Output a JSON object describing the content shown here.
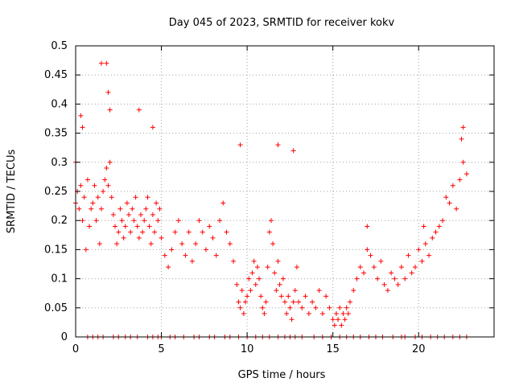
{
  "chart_data": {
    "type": "scatter",
    "title": "Day 045 of 2023, SRMTID for receiver kokv",
    "xlabel": "GPS time / hours",
    "ylabel": "SRMTID / TECUs",
    "xlim": [
      0,
      24.4
    ],
    "ylim": [
      0,
      0.5
    ],
    "x_ticks": [
      0,
      5,
      10,
      15,
      20
    ],
    "x_tick_labels": [
      "0",
      "5",
      "10",
      "15",
      "20"
    ],
    "y_ticks": [
      0,
      0.05,
      0.1,
      0.15,
      0.2,
      0.25,
      0.3,
      0.35,
      0.4,
      0.45,
      0.5
    ],
    "y_tick_labels": [
      "0",
      "0.05",
      "0.1",
      "0.15",
      "0.2",
      "0.25",
      "0.3",
      "0.35",
      "0.4",
      "0.45",
      "0.5"
    ],
    "grid": true,
    "marker": "+",
    "color": "#ff0000",
    "series": [
      {
        "name": "SRMTID",
        "x": [
          0.0,
          0.1,
          0.2,
          0.3,
          0.4,
          0.5,
          0.6,
          0.7,
          0.8,
          0.9,
          1.0,
          1.1,
          1.2,
          1.3,
          1.4,
          1.5,
          1.6,
          1.7,
          1.8,
          1.9,
          2.0,
          2.1,
          2.2,
          2.3,
          2.4,
          2.5,
          2.6,
          2.7,
          2.8,
          2.9,
          3.0,
          3.1,
          3.2,
          3.3,
          3.4,
          3.5,
          3.6,
          3.7,
          3.8,
          3.9,
          4.0,
          4.1,
          4.2,
          4.3,
          4.4,
          4.5,
          4.6,
          4.7,
          4.8,
          4.9,
          5.0,
          5.2,
          5.4,
          5.6,
          5.8,
          6.0,
          6.2,
          6.4,
          6.6,
          6.8,
          7.0,
          7.2,
          7.4,
          7.6,
          7.8,
          8.0,
          8.2,
          8.4,
          8.6,
          8.8,
          9.0,
          9.2,
          9.4,
          9.5,
          9.6,
          9.7,
          9.8,
          9.9,
          10.0,
          10.1,
          10.2,
          10.3,
          10.4,
          10.5,
          10.6,
          10.7,
          10.8,
          10.9,
          11.0,
          11.1,
          11.2,
          11.3,
          11.4,
          11.5,
          11.6,
          11.7,
          11.8,
          11.9,
          12.0,
          12.1,
          12.2,
          12.3,
          12.4,
          12.5,
          12.6,
          12.7,
          12.8,
          12.9,
          13.0,
          13.2,
          13.4,
          13.6,
          13.8,
          14.0,
          14.2,
          14.4,
          14.6,
          14.8,
          15.0,
          15.1,
          15.2,
          15.3,
          15.4,
          15.5,
          15.6,
          15.7,
          15.8,
          15.9,
          16.0,
          16.2,
          16.4,
          16.6,
          16.8,
          17.0,
          17.2,
          17.4,
          17.6,
          17.8,
          18.0,
          18.2,
          18.4,
          18.6,
          18.8,
          19.0,
          19.2,
          19.4,
          19.6,
          19.8,
          20.0,
          20.2,
          20.4,
          20.6,
          20.8,
          21.0,
          21.2,
          21.4,
          21.6,
          21.8,
          22.0,
          22.2,
          22.4,
          22.6,
          22.8,
          0.3,
          0.4,
          1.5,
          1.8,
          1.9,
          2.0,
          3.7,
          4.5,
          9.6,
          11.8,
          12.7,
          17.0,
          20.3,
          22.5,
          22.6,
          0.0,
          0.7,
          1.0,
          1.3,
          1.6,
          2.2,
          2.5,
          2.9,
          3.2,
          3.6,
          4.2,
          4.5,
          4.8,
          5.0,
          5.5,
          5.8,
          6.3,
          6.9,
          7.2,
          7.8,
          8.1,
          8.7,
          9.0,
          9.5,
          10.0,
          10.5,
          10.9,
          11.3,
          11.8,
          12.2,
          12.5,
          12.8,
          13.2,
          13.9,
          14.4,
          14.9,
          15.4,
          15.8,
          16.2,
          16.6,
          17.1,
          17.5,
          17.9,
          18.5,
          19.0,
          19.2,
          19.8,
          20.2,
          20.7,
          21.1,
          21.5,
          22.0,
          22.4,
          22.8
        ],
        "y": [
          0.23,
          0.25,
          0.22,
          0.26,
          0.2,
          0.24,
          0.15,
          0.27,
          0.19,
          0.22,
          0.23,
          0.26,
          0.2,
          0.24,
          0.16,
          0.22,
          0.25,
          0.27,
          0.29,
          0.26,
          0.3,
          0.24,
          0.21,
          0.19,
          0.16,
          0.18,
          0.22,
          0.2,
          0.17,
          0.19,
          0.23,
          0.21,
          0.18,
          0.22,
          0.2,
          0.24,
          0.19,
          0.17,
          0.21,
          0.18,
          0.2,
          0.22,
          0.24,
          0.19,
          0.16,
          0.21,
          0.18,
          0.23,
          0.2,
          0.22,
          0.17,
          0.14,
          0.12,
          0.15,
          0.18,
          0.2,
          0.16,
          0.14,
          0.18,
          0.13,
          0.16,
          0.2,
          0.18,
          0.15,
          0.19,
          0.17,
          0.14,
          0.2,
          0.23,
          0.18,
          0.16,
          0.13,
          0.09,
          0.06,
          0.05,
          0.08,
          0.04,
          0.06,
          0.07,
          0.1,
          0.08,
          0.11,
          0.13,
          0.09,
          0.12,
          0.1,
          0.07,
          0.05,
          0.04,
          0.06,
          0.12,
          0.18,
          0.2,
          0.16,
          0.11,
          0.08,
          0.13,
          0.09,
          0.07,
          0.1,
          0.06,
          0.04,
          0.07,
          0.05,
          0.03,
          0.06,
          0.08,
          0.12,
          0.06,
          0.05,
          0.07,
          0.04,
          0.06,
          0.05,
          0.08,
          0.04,
          0.07,
          0.05,
          0.03,
          0.02,
          0.04,
          0.03,
          0.05,
          0.02,
          0.04,
          0.03,
          0.05,
          0.04,
          0.06,
          0.08,
          0.1,
          0.12,
          0.11,
          0.15,
          0.14,
          0.12,
          0.1,
          0.13,
          0.09,
          0.08,
          0.11,
          0.1,
          0.09,
          0.12,
          0.1,
          0.14,
          0.11,
          0.12,
          0.15,
          0.13,
          0.16,
          0.14,
          0.17,
          0.18,
          0.19,
          0.2,
          0.24,
          0.23,
          0.26,
          0.22,
          0.27,
          0.3,
          0.28,
          0.38,
          0.36,
          0.47,
          0.47,
          0.42,
          0.39,
          0.39,
          0.36,
          0.33,
          0.33,
          0.32,
          0.19,
          0.19,
          0.34,
          0.36,
          0.3,
          0.0,
          0.0,
          0.0,
          0.0,
          0.0,
          0.0,
          0.0,
          0.0,
          0.0,
          0.0,
          0.0,
          0.0,
          0.0,
          0.0,
          0.0,
          0.0,
          0.0,
          0.0,
          0.0,
          0.0,
          0.0,
          0.0,
          0.0,
          0.0,
          0.0,
          0.0,
          0.0,
          0.0,
          0.0,
          0.0,
          0.0,
          0.0,
          0.0,
          0.0,
          0.0,
          0.0,
          0.0,
          0.0,
          0.0,
          0.0,
          0.0,
          0.0,
          0.0,
          0.0,
          0.0,
          0.0,
          0.0,
          0.0,
          0.0,
          0.0,
          0.0,
          0.0,
          0.0
        ]
      }
    ]
  }
}
